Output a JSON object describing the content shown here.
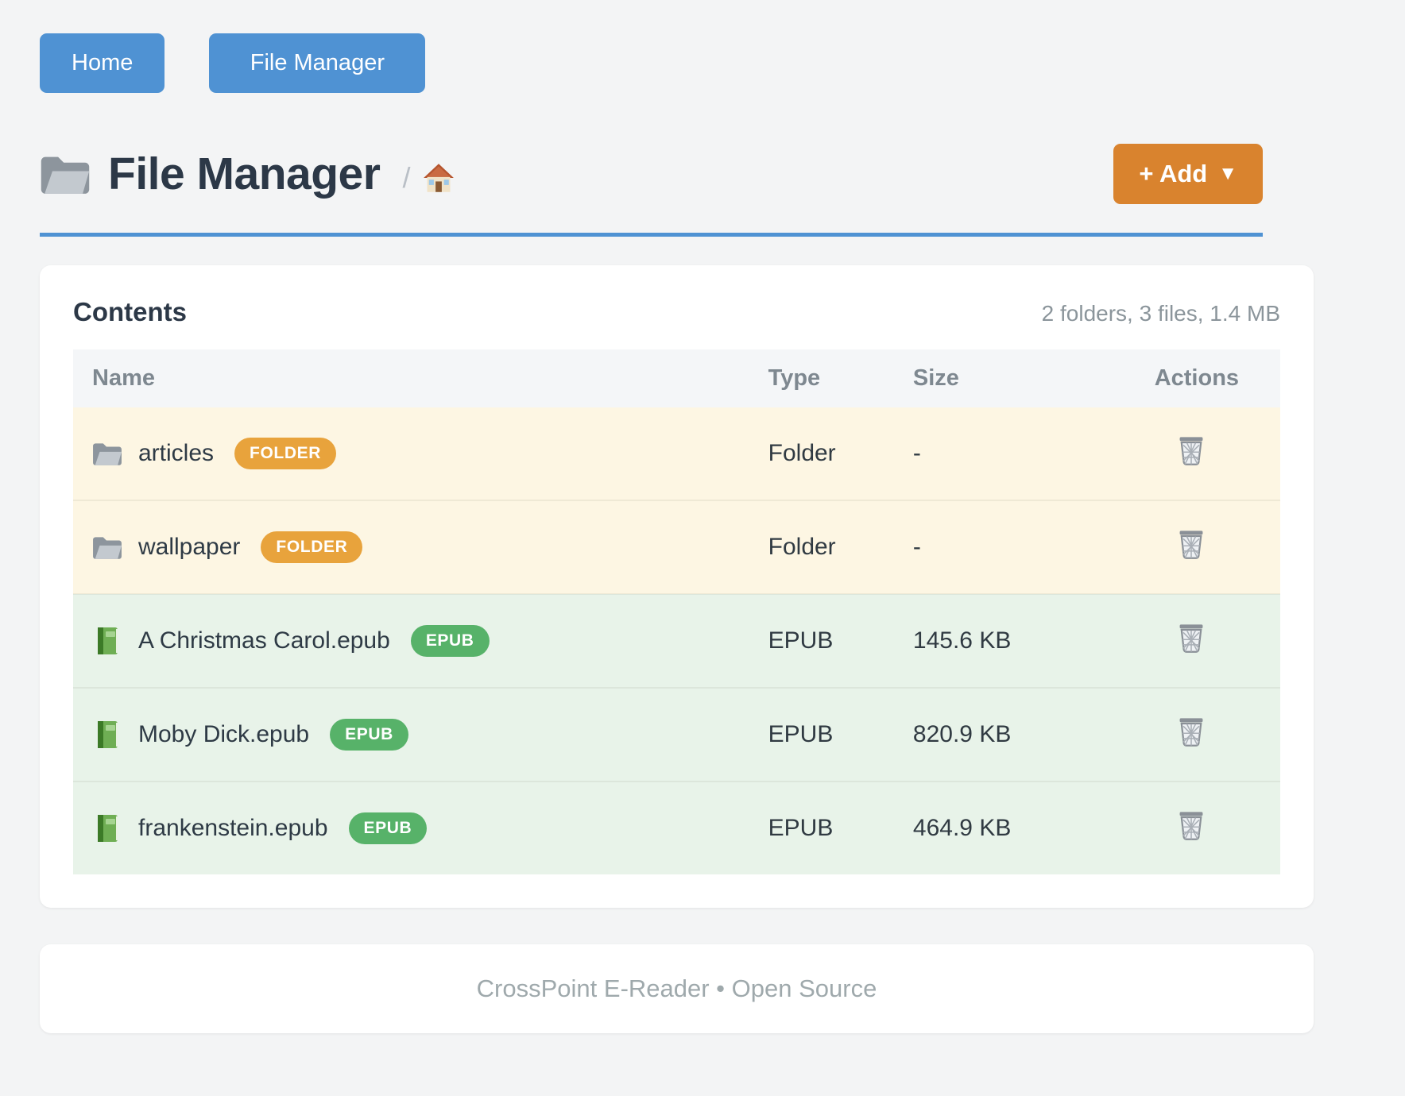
{
  "nav": {
    "home_label": "Home",
    "file_manager_label": "File Manager"
  },
  "header": {
    "title": "File Manager",
    "title_icon": "folder-icon",
    "breadcrumb_separator": "/",
    "breadcrumb_home_icon": "house-icon",
    "add_button_label": "+ Add",
    "add_button_caret": "▼"
  },
  "content_card": {
    "title": "Contents",
    "summary": "2 folders, 3 files, 1.4 MB",
    "table": {
      "columns": [
        "Name",
        "Type",
        "Size",
        "Actions"
      ],
      "action_icon": "trash-icon",
      "rows": [
        {
          "icon": "folder-icon",
          "name": "articles",
          "badge": "FOLDER",
          "badge_type": "folder",
          "type": "Folder",
          "size": "-"
        },
        {
          "icon": "folder-icon",
          "name": "wallpaper",
          "badge": "FOLDER",
          "badge_type": "folder",
          "type": "Folder",
          "size": "-"
        },
        {
          "icon": "book-icon",
          "name": "A Christmas Carol.epub",
          "badge": "EPUB",
          "badge_type": "epub",
          "type": "EPUB",
          "size": "145.6 KB"
        },
        {
          "icon": "book-icon",
          "name": "Moby Dick.epub",
          "badge": "EPUB",
          "badge_type": "epub",
          "type": "EPUB",
          "size": "820.9 KB"
        },
        {
          "icon": "book-icon",
          "name": "frankenstein.epub",
          "badge": "EPUB",
          "badge_type": "epub",
          "type": "EPUB",
          "size": "464.9 KB"
        }
      ]
    }
  },
  "footer": {
    "text": "CrossPoint E-Reader • Open Source"
  },
  "colors": {
    "primary_blue": "#4f92d3",
    "accent_orange": "#d9832e",
    "folder_badge": "#e8a33c",
    "epub_badge": "#57b269",
    "folder_row_bg": "#fdf6e3",
    "epub_row_bg": "#e8f3e9"
  }
}
